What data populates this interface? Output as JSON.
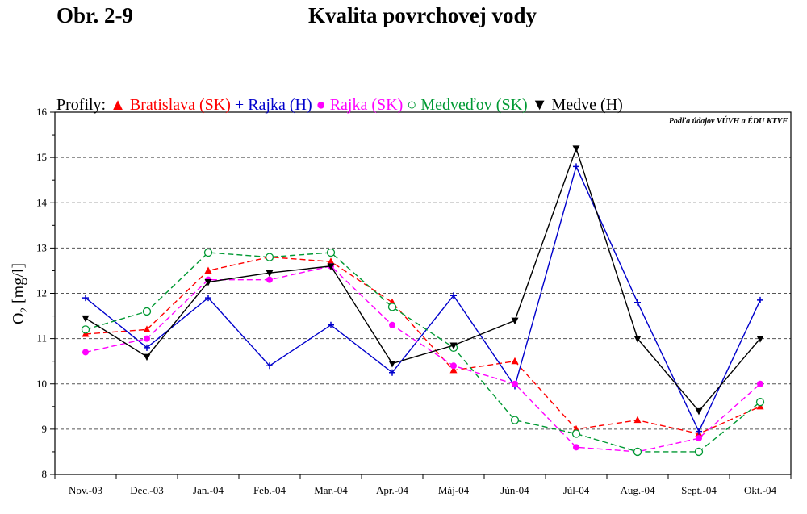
{
  "header": {
    "figure_label": "Obr. 2-9",
    "title": "Kvalita povrchovej vody"
  },
  "chart_data": {
    "type": "line",
    "legend_prefix": "Profily:",
    "source_note": "Podľa údajov VÚVH a ÉDU KTVF",
    "ylabel_main": "O",
    "ylabel_sub": "2",
    "ylabel_unit": " [mg/l]",
    "categories": [
      "Nov.-03",
      "Dec.-03",
      "Jan.-04",
      "Feb.-04",
      "Mar.-04",
      "Apr.-04",
      "Máj-04",
      "Jún-04",
      "Júl-04",
      "Aug.-04",
      "Sept.-04",
      "Okt.-04"
    ],
    "ylim": [
      8,
      16
    ],
    "yticks": [
      "8",
      "9",
      "10",
      "11",
      "12",
      "13",
      "14",
      "15",
      "16"
    ],
    "grid": "horizontal-dashed",
    "legend_position": "top",
    "series": [
      {
        "name": "Bratislava (SK)",
        "color": "#ff0000",
        "marker": "triangle-up",
        "dash": true,
        "values": [
          11.1,
          11.2,
          12.5,
          12.8,
          12.7,
          11.8,
          10.3,
          10.5,
          9.0,
          9.2,
          8.9,
          9.5
        ]
      },
      {
        "name": "Rajka (H)",
        "color": "#0000cc",
        "marker": "plus",
        "dash": false,
        "values": [
          11.9,
          10.8,
          11.9,
          10.4,
          11.3,
          10.25,
          11.95,
          9.95,
          14.8,
          11.8,
          8.95,
          11.85
        ]
      },
      {
        "name": "Rajka (SK)",
        "color": "#ff00ff",
        "marker": "circle-filled",
        "dash": true,
        "values": [
          10.7,
          11.0,
          12.3,
          12.3,
          12.6,
          11.3,
          10.4,
          10.0,
          8.6,
          8.5,
          8.8,
          10.0
        ]
      },
      {
        "name": "Medveďov (SK)",
        "color": "#009933",
        "marker": "circle-open",
        "dash": true,
        "values": [
          11.2,
          11.6,
          12.9,
          12.8,
          12.9,
          11.7,
          10.8,
          9.2,
          8.9,
          8.5,
          8.5,
          9.6
        ]
      },
      {
        "name": "Medve (H)",
        "color": "#000000",
        "marker": "triangle-down",
        "dash": false,
        "values": [
          11.45,
          10.6,
          12.25,
          12.45,
          12.6,
          10.45,
          10.85,
          11.4,
          15.2,
          11.0,
          9.4,
          11.0
        ]
      }
    ]
  }
}
